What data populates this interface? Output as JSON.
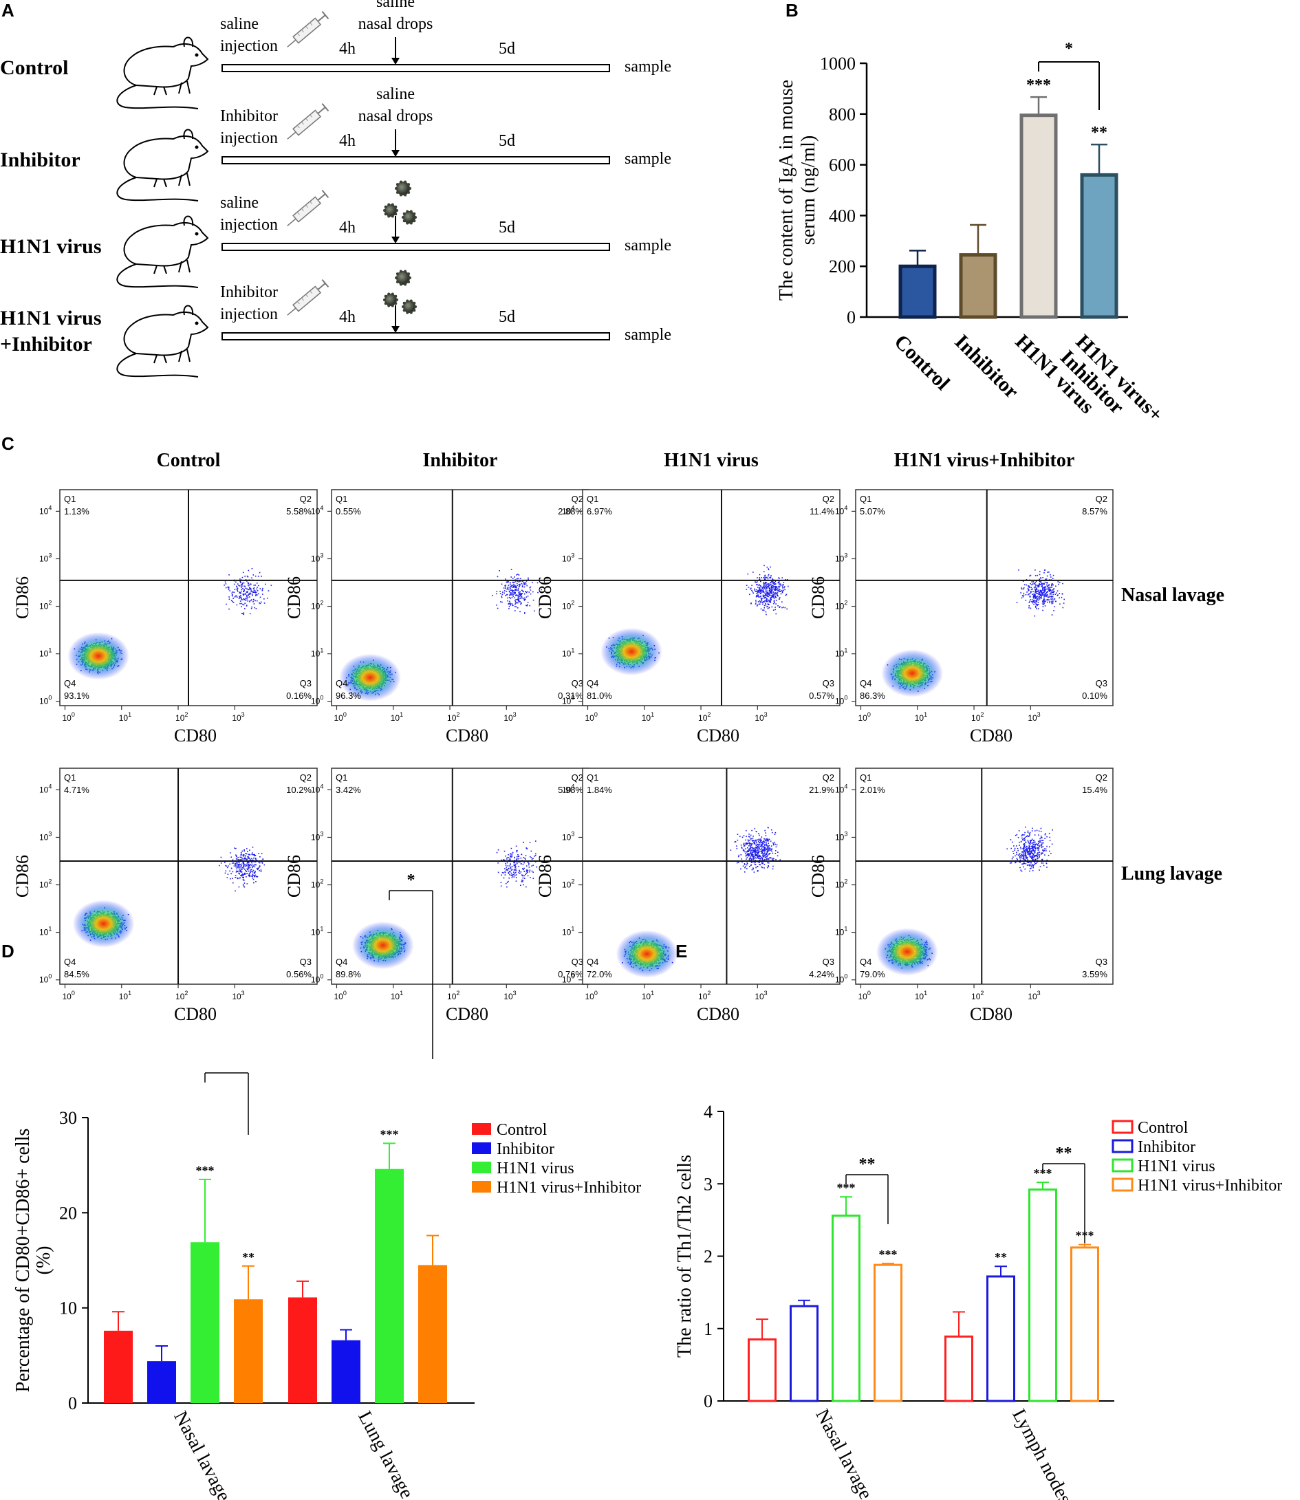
{
  "panelA": {
    "label": "A",
    "rows": [
      {
        "group": "Control",
        "group_line2": "",
        "injection": [
          "saline",
          "injection"
        ],
        "nasal": [
          "saline",
          "nasal drops"
        ],
        "virus": false,
        "t1": "4h",
        "t2": "5d",
        "end": "sample"
      },
      {
        "group": "Inhibitor",
        "group_line2": "",
        "injection": [
          "Inhibitor",
          "injection"
        ],
        "nasal": [
          "saline",
          "nasal drops"
        ],
        "virus": false,
        "t1": "4h",
        "t2": "5d",
        "end": "sample"
      },
      {
        "group": "H1N1 virus",
        "group_line2": "",
        "injection": [
          "saline",
          "injection"
        ],
        "nasal": [
          "",
          ""
        ],
        "virus": true,
        "t1": "4h",
        "t2": "5d",
        "end": "sample"
      },
      {
        "group": "H1N1 virus",
        "group_line2": "+Inhibitor",
        "injection": [
          "Inhibitor",
          "injection"
        ],
        "nasal": [
          "",
          ""
        ],
        "virus": true,
        "t1": "4h",
        "t2": "5d",
        "end": "sample"
      }
    ]
  },
  "panelC": {
    "label": "C",
    "columns": [
      "Control",
      "Inhibitor",
      "H1N1 virus",
      "H1N1 virus+Inhibitor"
    ],
    "rows": [
      "Nasal lavage",
      "Lung lavage"
    ],
    "xlabel": "CD80",
    "ylabel": "CD86",
    "tick_exponents": [
      "0",
      "1",
      "2",
      "3",
      "4"
    ],
    "quadrant_names": [
      "Q1",
      "Q2",
      "Q3",
      "Q4"
    ],
    "plots": [
      [
        {
          "q1": "1.13%",
          "q2": "5.58%",
          "q3": "0.16%",
          "q4": "93.1%"
        },
        {
          "q1": "0.55%",
          "q2": "2.88%",
          "q3": "0.31%",
          "q4": "96.3%"
        },
        {
          "q1": "6.97%",
          "q2": "11.4%",
          "q3": "0.57%",
          "q4": "81.0%"
        },
        {
          "q1": "5.07%",
          "q2": "8.57%",
          "q3": "0.10%",
          "q4": "86.3%"
        }
      ],
      [
        {
          "q1": "4.71%",
          "q2": "10.2%",
          "q3": "0.56%",
          "q4": "84.5%"
        },
        {
          "q1": "3.42%",
          "q2": "5.98%",
          "q3": "0.76%",
          "q4": "89.8%"
        },
        {
          "q1": "1.84%",
          "q2": "21.9%",
          "q3": "4.24%",
          "q4": "72.0%"
        },
        {
          "q1": "2.01%",
          "q2": "15.4%",
          "q3": "3.59%",
          "q4": "79.0%"
        }
      ]
    ]
  },
  "chart_data": [
    {
      "id": "B",
      "label": "B",
      "type": "bar",
      "ylabel": "The content of IgA in mouse serum (ng/ml)",
      "ylabel_lines": [
        "The content of IgA in mouse",
        "serum (ng/ml)"
      ],
      "ylim": [
        0,
        1000
      ],
      "yticks": [
        0,
        200,
        400,
        600,
        800,
        1000
      ],
      "categories": [
        "Control",
        "Inhibitor",
        "H1N1 virus",
        "H1N1 virus+ Inhibitor"
      ],
      "category_lines": [
        [
          "Control"
        ],
        [
          "Inhibitor"
        ],
        [
          "H1N1 virus"
        ],
        [
          "H1N1 virus+",
          "Inhibitor"
        ]
      ],
      "values": [
        200,
        245,
        795,
        560
      ],
      "errors": [
        62,
        118,
        72,
        120
      ],
      "colors": [
        "#2b56a0",
        "#ab9470",
        "#e6e0d7",
        "#6fa4c1"
      ],
      "edges": [
        "#0e234d",
        "#5e4b2c",
        "#707070",
        "#2c4f62"
      ],
      "significance": [
        "",
        "",
        "***",
        "**"
      ],
      "bracket": {
        "from": 2,
        "to": 3,
        "label": "*"
      }
    },
    {
      "id": "D",
      "label": "D",
      "type": "bar",
      "ylabel": "Percentage of CD80+CD86+ cells (%)",
      "ylabel_lines": [
        "Percentage of CD80+CD86+ cells",
        "(%)"
      ],
      "ylim": [
        0,
        30
      ],
      "yticks": [
        0,
        10,
        20,
        30
      ],
      "categories": [
        "Nasal lavage",
        "Lung lavage"
      ],
      "series": [
        {
          "name": "Control",
          "color": "#ff1a1a",
          "values": [
            7.6,
            11.1
          ],
          "errors": [
            2.0,
            1.7
          ],
          "significance": [
            "",
            ""
          ]
        },
        {
          "name": "Inhibitor",
          "color": "#1111ee",
          "values": [
            4.4,
            6.6
          ],
          "errors": [
            1.6,
            1.1
          ],
          "significance": [
            "",
            ""
          ]
        },
        {
          "name": "H1N1 virus",
          "color": "#33ee33",
          "values": [
            16.9,
            24.6
          ],
          "errors": [
            6.6,
            2.7
          ],
          "significance": [
            "***",
            "***"
          ]
        },
        {
          "name": "H1N1 virus+Inhibitor",
          "color": "#ff7f00",
          "values": [
            10.9,
            14.5
          ],
          "errors": [
            3.5,
            3.1
          ],
          "significance": [
            "**",
            ""
          ]
        }
      ],
      "brackets": [
        {
          "category": 0,
          "from": "H1N1 virus",
          "to": "H1N1 virus+Inhibitor",
          "label": ""
        },
        {
          "category": 1,
          "from": "H1N1 virus",
          "to": "H1N1 virus+Inhibitor",
          "label": "*"
        }
      ]
    },
    {
      "id": "E",
      "label": "E",
      "type": "bar",
      "ylabel": "The ratio of Th1/Th2 cells",
      "ylim": [
        0,
        4
      ],
      "yticks": [
        0,
        1,
        2,
        3,
        4
      ],
      "categories": [
        "Nasal lavage",
        "Lymph nodes"
      ],
      "series": [
        {
          "name": "Control",
          "color": "#ff2020",
          "values": [
            0.85,
            0.89
          ],
          "errors": [
            0.28,
            0.34
          ],
          "significance": [
            "",
            ""
          ]
        },
        {
          "name": "Inhibitor",
          "color": "#1a1add",
          "values": [
            1.31,
            1.72
          ],
          "errors": [
            0.08,
            0.14
          ],
          "significance": [
            "",
            "**"
          ]
        },
        {
          "name": "H1N1 virus",
          "color": "#2ee62e",
          "values": [
            2.56,
            2.92
          ],
          "errors": [
            0.26,
            0.1
          ],
          "significance": [
            "***",
            "***"
          ]
        },
        {
          "name": "H1N1 virus+Inhibitor",
          "color": "#ff8a1a",
          "values": [
            1.88,
            2.12
          ],
          "errors": [
            0.02,
            0.04
          ],
          "significance": [
            "***",
            "***"
          ]
        }
      ],
      "brackets": [
        {
          "category": 0,
          "from": "H1N1 virus",
          "to": "H1N1 virus+Inhibitor",
          "label": "**"
        },
        {
          "category": 1,
          "from": "H1N1 virus",
          "to": "H1N1 virus+Inhibitor",
          "label": "**"
        }
      ]
    }
  ]
}
